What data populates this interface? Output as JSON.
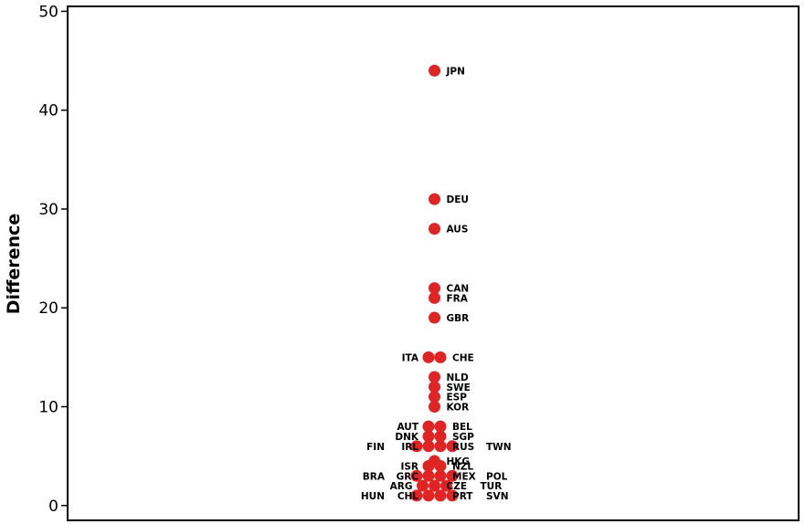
{
  "chart_data": {
    "type": "scatter",
    "title": "",
    "xlabel": "",
    "ylabel": "Difference",
    "ylim": [
      -1.5,
      50.5
    ],
    "yticks": [
      0,
      10,
      20,
      30,
      40,
      50
    ],
    "grid": false,
    "legend": "none",
    "marker_color": "#e02424",
    "points": [
      {
        "label": "JPN",
        "y": 44
      },
      {
        "label": "DEU",
        "y": 31
      },
      {
        "label": "AUS",
        "y": 28
      },
      {
        "label": "CAN",
        "y": 22
      },
      {
        "label": "FRA",
        "y": 21
      },
      {
        "label": "GBR",
        "y": 19
      },
      {
        "label": "ITA",
        "y": 15
      },
      {
        "label": "CHE",
        "y": 15
      },
      {
        "label": "NLD",
        "y": 13
      },
      {
        "label": "SWE",
        "y": 12
      },
      {
        "label": "ESP",
        "y": 11
      },
      {
        "label": "KOR",
        "y": 10
      },
      {
        "label": "AUT",
        "y": 8
      },
      {
        "label": "BEL",
        "y": 8
      },
      {
        "label": "DNK",
        "y": 7
      },
      {
        "label": "SGP",
        "y": 7
      },
      {
        "label": "FIN",
        "y": 6
      },
      {
        "label": "IRL",
        "y": 6
      },
      {
        "label": "RUS",
        "y": 6
      },
      {
        "label": "TWN",
        "y": 6
      },
      {
        "label": "HKG",
        "y": 5
      },
      {
        "label": "ISR",
        "y": 4
      },
      {
        "label": "NZL",
        "y": 4
      },
      {
        "label": "BRA",
        "y": 3
      },
      {
        "label": "GRC",
        "y": 3
      },
      {
        "label": "MEX",
        "y": 3
      },
      {
        "label": "POL",
        "y": 3
      },
      {
        "label": "ARG",
        "y": 2
      },
      {
        "label": "CZE",
        "y": 2
      },
      {
        "label": "TUR",
        "y": 2
      },
      {
        "label": "HUN",
        "y": 1
      },
      {
        "label": "CHL",
        "y": 1
      },
      {
        "label": "PRT",
        "y": 1
      },
      {
        "label": "SVN",
        "y": 1
      }
    ]
  }
}
